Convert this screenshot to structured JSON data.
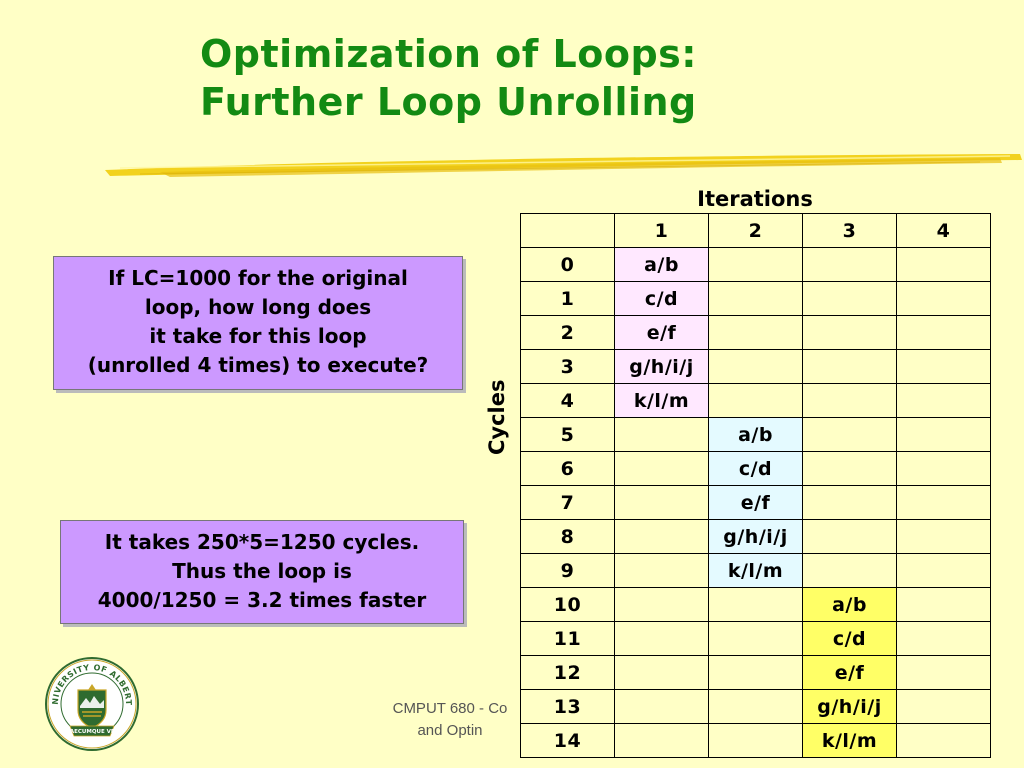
{
  "title": {
    "line1": "Optimization of Loops:",
    "line2": "Further Loop Unrolling"
  },
  "question": {
    "lines": [
      "If LC=1000 for the original",
      "loop, how long does",
      "it take for this loop",
      "(unrolled 4 times) to execute?"
    ]
  },
  "answer": {
    "lines": [
      "It takes 250*5=1250 cycles.",
      "Thus the loop is",
      "4000/1250 = 3.2 times faster"
    ]
  },
  "table": {
    "column_title": "Iterations",
    "row_title": "Cycles",
    "headers": [
      "",
      "1",
      "2",
      "3",
      "4"
    ],
    "rows": [
      [
        "0",
        "a/b",
        "",
        "",
        ""
      ],
      [
        "1",
        "c/d",
        "",
        "",
        ""
      ],
      [
        "2",
        "e/f",
        "",
        "",
        ""
      ],
      [
        "3",
        "g/h/i/j",
        "",
        "",
        ""
      ],
      [
        "4",
        "k/l/m",
        "",
        "",
        ""
      ],
      [
        "5",
        "",
        "a/b",
        "",
        ""
      ],
      [
        "6",
        "",
        "c/d",
        "",
        ""
      ],
      [
        "7",
        "",
        "e/f",
        "",
        ""
      ],
      [
        "8",
        "",
        "g/h/i/j",
        "",
        ""
      ],
      [
        "9",
        "",
        "k/l/m",
        "",
        ""
      ],
      [
        "10",
        "",
        "",
        "a/b",
        ""
      ],
      [
        "11",
        "",
        "",
        "c/d",
        ""
      ],
      [
        "12",
        "",
        "",
        "e/f",
        ""
      ],
      [
        "13",
        "",
        "",
        "g/h/i/j",
        ""
      ],
      [
        "14",
        "",
        "",
        "k/l/m",
        ""
      ]
    ],
    "highlight_colors": {
      "iteration_1": "#FFE8FF",
      "iteration_2": "#E4FAFF",
      "iteration_3": "#FFFF66"
    }
  },
  "footer": {
    "line1": "CMPUT 680 - Co",
    "line2": "and Optin"
  },
  "logo": {
    "top_text": "UNIVERSITY OF ALBERTA",
    "bottom_text": "QUAECUMQUE VERA"
  },
  "colors": {
    "background": "#FFFFC6",
    "title": "#138a13",
    "callout": "#CC99FF",
    "underline": "#F2D21E"
  }
}
